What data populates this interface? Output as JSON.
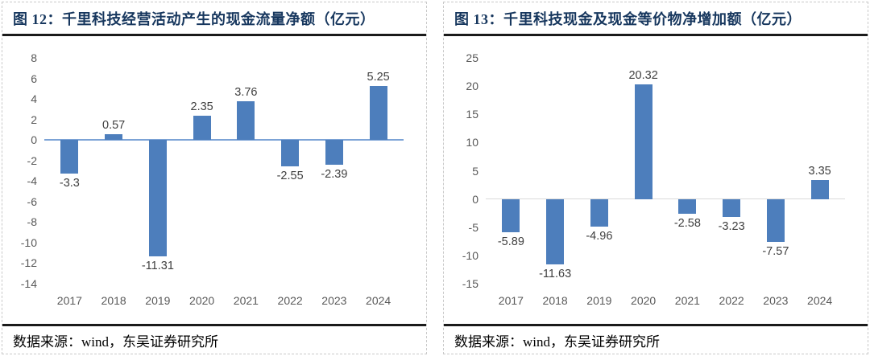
{
  "colors": {
    "bar": "#4d7ebc",
    "title_text": "#17375e",
    "tick_label": "#595959",
    "value_label": "#404040",
    "divider": "#1a1a1a",
    "panel_border": "#c9c9c9"
  },
  "panels": [
    {
      "title": "图 12：千里科技经营活动产生的现金流量净额（亿元）",
      "source": "数据来源：wind，东吴证券研究所",
      "chart_data": {
        "type": "bar",
        "title": "千里科技经营活动产生的现金流量净额（亿元）",
        "categories": [
          "2017",
          "2018",
          "2019",
          "2020",
          "2021",
          "2022",
          "2023",
          "2024"
        ],
        "values": [
          -3.3,
          0.57,
          -11.31,
          2.35,
          3.76,
          -2.55,
          -2.39,
          5.25
        ],
        "value_labels": [
          "-3.3",
          "0.57",
          "-11.31",
          "2.35",
          "3.76",
          "-2.55",
          "-2.39",
          "5.25"
        ],
        "xlabel": "",
        "ylabel": "",
        "ylim": [
          -14,
          8
        ],
        "yticks": [
          8,
          6,
          4,
          2,
          0,
          -2,
          -4,
          -6,
          -8,
          -10,
          -12,
          -14
        ],
        "grid": false,
        "legend": "none",
        "bar_color": "#4d7ebc",
        "zero_line_color": "#7ca3d6"
      }
    },
    {
      "title": "图 13：千里科技现金及现金等价物净增加额（亿元）",
      "source": "数据来源：wind，东吴证券研究所",
      "chart_data": {
        "type": "bar",
        "title": "千里科技现金及现金等价物净增加额（亿元）",
        "categories": [
          "2017",
          "2018",
          "2019",
          "2020",
          "2021",
          "2022",
          "2023",
          "2024"
        ],
        "values": [
          -5.89,
          -11.63,
          -4.96,
          20.32,
          -2.58,
          -3.23,
          -7.57,
          3.35
        ],
        "value_labels": [
          "-5.89",
          "-11.63",
          "-4.96",
          "20.32",
          "-2.58",
          "-3.23",
          "-7.57",
          "3.35"
        ],
        "xlabel": "",
        "ylabel": "",
        "ylim": [
          -15,
          25
        ],
        "yticks": [
          25,
          20,
          15,
          10,
          5,
          0,
          -5,
          -10,
          -15
        ],
        "grid": false,
        "legend": "none",
        "bar_color": "#4d7ebc",
        "zero_line_color": "#d9d9d9"
      }
    }
  ]
}
